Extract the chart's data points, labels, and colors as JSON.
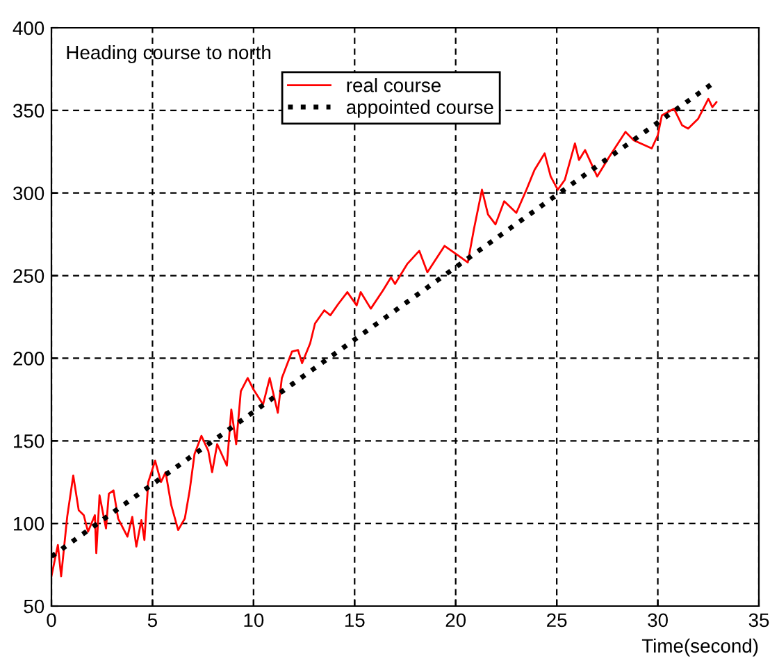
{
  "chart_data": {
    "type": "line",
    "xlabel": "Time(second)",
    "annotations": [
      "Heading course to north"
    ],
    "xlim": [
      0,
      35
    ],
    "ylim": [
      50,
      400
    ],
    "xticks": [
      0,
      5,
      10,
      15,
      20,
      25,
      30,
      35
    ],
    "yticks": [
      50,
      100,
      150,
      200,
      250,
      300,
      350,
      400
    ],
    "grid": true,
    "legend": "top",
    "series": [
      {
        "name": "real course",
        "color": "#ff0000",
        "line_style": "solid",
        "x": [
          0,
          0.32,
          0.48,
          0.78,
          1.08,
          1.35,
          1.6,
          1.81,
          2.15,
          2.22,
          2.38,
          2.7,
          2.84,
          3.07,
          3.3,
          3.76,
          4.0,
          4.2,
          4.45,
          4.6,
          4.79,
          5.13,
          5.42,
          5.65,
          5.93,
          6.27,
          6.6,
          6.84,
          7.08,
          7.42,
          7.76,
          7.95,
          8.2,
          8.68,
          8.9,
          9.14,
          9.37,
          9.71,
          10.0,
          10.47,
          10.8,
          11.2,
          11.4,
          11.9,
          12.2,
          12.4,
          12.8,
          13.04,
          13.5,
          13.8,
          14.2,
          14.64,
          15.1,
          15.3,
          15.8,
          16.4,
          16.8,
          17.0,
          17.6,
          18.2,
          18.6,
          19.45,
          20.15,
          20.6,
          20.9,
          21.3,
          21.6,
          21.97,
          22.4,
          23.0,
          23.5,
          23.9,
          24.4,
          24.7,
          25.05,
          25.4,
          25.9,
          26.1,
          26.4,
          27.0,
          27.6,
          28.4,
          28.8,
          29.7,
          30.0,
          30.2,
          30.8,
          31.2,
          31.5,
          32.0,
          32.5,
          32.7,
          32.9
        ],
        "values": [
          68,
          87,
          68,
          104,
          129,
          108,
          105,
          95,
          105,
          82,
          117,
          97,
          118,
          120,
          103,
          92,
          104,
          86,
          102,
          90,
          125,
          138,
          125,
          131,
          111,
          96,
          103,
          120,
          142,
          153,
          144,
          131,
          148,
          135,
          169,
          148,
          180,
          188,
          181,
          172,
          188,
          167,
          188,
          204,
          205,
          197,
          209,
          221,
          229,
          226,
          233,
          240,
          232,
          240,
          230,
          241,
          249,
          245,
          257,
          265,
          252,
          268,
          262,
          258,
          278,
          302,
          287,
          281,
          295,
          288,
          302,
          314,
          324,
          310,
          302,
          308,
          330,
          320,
          326,
          310,
          322,
          337,
          332,
          327,
          335,
          347,
          351,
          341,
          339,
          345,
          357,
          352,
          355
        ]
      },
      {
        "name": "appointed course",
        "color": "#000000",
        "line_style": "dotted",
        "x": [
          0,
          32.9
        ],
        "values": [
          80,
          368
        ]
      }
    ]
  }
}
